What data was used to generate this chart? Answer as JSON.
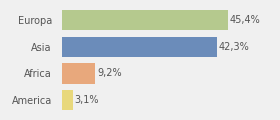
{
  "categories": [
    "Europa",
    "Asia",
    "Africa",
    "America"
  ],
  "values": [
    45.4,
    42.3,
    9.2,
    3.1
  ],
  "labels": [
    "45,4%",
    "42,3%",
    "9,2%",
    "3,1%"
  ],
  "bar_colors": [
    "#b5c98e",
    "#6b8cba",
    "#e8a87c",
    "#e8d87c"
  ],
  "background_color": "#f0f0f0",
  "figsize": [
    2.8,
    1.2
  ],
  "dpi": 100,
  "xlim": 58,
  "bar_height": 0.75,
  "label_fontsize": 7,
  "tick_fontsize": 7
}
